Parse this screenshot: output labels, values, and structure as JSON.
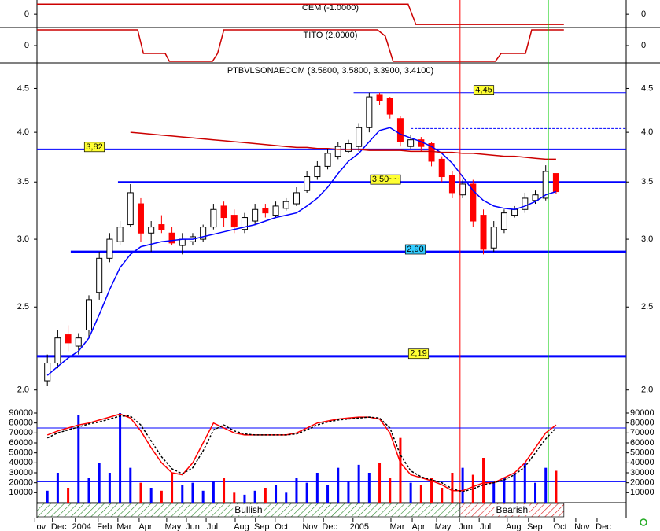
{
  "chart_data": [
    {
      "type": "line",
      "title": "CEM (-1.0000)",
      "x": [
        0,
        71.5,
        73,
        101.5
      ],
      "xlim": [
        0,
        113.5
      ],
      "series": [
        {
          "color": "#cc0000",
          "values": [
            1,
            1,
            -1,
            -1
          ]
        }
      ],
      "ylim": [
        -1.3,
        1.4
      ],
      "yticks": [
        0
      ]
    },
    {
      "type": "line",
      "title": "TITO (2.0000)",
      "x": [
        0,
        19.4,
        20.5,
        24.7,
        25.5,
        33.8,
        34.8,
        36,
        65.6,
        67.1,
        68.6,
        88.3,
        89.4,
        94.1,
        95.3,
        101.5
      ],
      "xlim": [
        0,
        113.5
      ],
      "series": [
        {
          "color": "#cc0000",
          "values": [
            2,
            2,
            -1,
            -1,
            -2,
            -2,
            -1,
            2,
            2,
            1.2,
            -2,
            -2,
            -1,
            -1,
            2,
            2
          ]
        }
      ],
      "ylim": [
        -2.2,
        2.3
      ],
      "yticks": [
        0
      ]
    },
    {
      "type": "candlestick",
      "title": "PTBVLSONAECOM (3.5800, 3.5800, 3.3900, 3.4100)",
      "log_scale": true,
      "x": [
        2,
        4,
        6,
        8,
        10,
        12,
        14,
        16,
        18,
        20,
        22,
        24,
        26,
        28,
        30,
        32,
        34,
        36,
        38,
        40,
        42,
        44,
        46,
        48,
        50,
        52,
        54,
        56,
        58,
        60,
        62,
        64,
        66,
        68,
        70,
        72,
        74,
        76,
        78,
        80,
        82,
        84,
        86,
        88,
        90,
        92,
        94,
        96,
        98,
        100
      ],
      "xlim": [
        0,
        113.5
      ],
      "open": [
        2.05,
        2.15,
        2.32,
        2.25,
        2.35,
        2.6,
        2.85,
        2.98,
        3.12,
        3.3,
        3.05,
        3.12,
        3.05,
        2.95,
        2.98,
        3.0,
        3.1,
        3.28,
        3.2,
        3.08,
        3.15,
        3.26,
        3.2,
        3.26,
        3.3,
        3.42,
        3.55,
        3.65,
        3.75,
        3.8,
        3.85,
        4.05,
        4.42,
        4.38,
        4.15,
        3.85,
        3.92,
        3.88,
        3.72,
        3.56,
        3.38,
        3.48,
        3.2,
        2.93,
        3.08,
        3.2,
        3.25,
        3.33,
        3.35,
        3.58
      ],
      "high": [
        2.2,
        2.35,
        2.38,
        2.33,
        2.58,
        2.9,
        3.05,
        3.15,
        3.48,
        3.35,
        3.15,
        3.2,
        3.1,
        3.05,
        3.05,
        3.12,
        3.3,
        3.32,
        3.25,
        3.22,
        3.3,
        3.3,
        3.32,
        3.35,
        3.45,
        3.6,
        3.7,
        3.82,
        3.9,
        3.92,
        4.1,
        4.45,
        4.45,
        4.4,
        4.18,
        3.97,
        3.95,
        3.9,
        3.75,
        3.6,
        3.52,
        3.52,
        3.25,
        3.15,
        3.25,
        3.28,
        3.4,
        3.42,
        3.66,
        3.58
      ],
      "low": [
        2.02,
        2.12,
        2.22,
        2.2,
        2.3,
        2.55,
        2.82,
        2.95,
        3.1,
        2.98,
        2.9,
        3.05,
        2.95,
        2.88,
        2.95,
        2.98,
        3.08,
        3.1,
        3.05,
        3.05,
        3.12,
        3.18,
        3.18,
        3.24,
        3.28,
        3.4,
        3.52,
        3.62,
        3.72,
        3.78,
        3.8,
        4.0,
        4.3,
        4.15,
        3.85,
        3.82,
        3.8,
        3.65,
        3.5,
        3.35,
        3.35,
        3.1,
        2.88,
        2.9,
        3.05,
        3.18,
        3.22,
        3.3,
        3.33,
        3.39
      ],
      "close": [
        2.15,
        2.3,
        2.27,
        2.3,
        2.55,
        2.85,
        3.0,
        3.1,
        3.4,
        3.05,
        3.1,
        3.08,
        2.97,
        3.0,
        3.02,
        3.1,
        3.25,
        3.18,
        3.1,
        3.18,
        3.25,
        3.22,
        3.28,
        3.32,
        3.4,
        3.55,
        3.65,
        3.78,
        3.85,
        3.88,
        4.05,
        4.4,
        4.35,
        4.2,
        3.9,
        3.92,
        3.85,
        3.7,
        3.55,
        3.4,
        3.48,
        3.15,
        2.92,
        3.1,
        3.22,
        3.25,
        3.35,
        3.38,
        3.6,
        3.41
      ],
      "up_color": "#ffffff",
      "down_color": "#ff0000",
      "series": [
        {
          "color": "#0000ff",
          "values": [
            2.08,
            2.13,
            2.18,
            2.22,
            2.3,
            2.45,
            2.62,
            2.78,
            2.88,
            2.94,
            2.96,
            2.98,
            2.99,
            3.0,
            3.0,
            3.02,
            3.04,
            3.06,
            3.08,
            3.1,
            3.12,
            3.15,
            3.18,
            3.2,
            3.22,
            3.28,
            3.35,
            3.45,
            3.58,
            3.7,
            3.78,
            3.9,
            4.02,
            4.05,
            3.98,
            3.94,
            3.9,
            3.85,
            3.78,
            3.68,
            3.55,
            3.42,
            3.33,
            3.28,
            3.26,
            3.25,
            3.28,
            3.32,
            3.38,
            3.41
          ]
        },
        {
          "color": "#cc0000",
          "values": [
            null,
            null,
            null,
            null,
            null,
            null,
            null,
            null,
            4.0,
            3.99,
            3.98,
            3.97,
            3.96,
            3.95,
            3.94,
            3.93,
            3.92,
            3.91,
            3.9,
            3.89,
            3.88,
            3.87,
            3.86,
            3.85,
            3.84,
            3.84,
            3.83,
            3.83,
            3.82,
            3.82,
            3.82,
            3.81,
            3.81,
            3.81,
            3.81,
            3.8,
            3.8,
            3.8,
            3.79,
            3.79,
            3.78,
            3.78,
            3.77,
            3.76,
            3.75,
            3.75,
            3.74,
            3.73,
            3.72,
            3.72
          ]
        }
      ],
      "hlines": [
        {
          "value": 4.45,
          "label": "4,45",
          "start": 61,
          "color": "#0000ff",
          "line_width": 1,
          "label_color": "#ffff33"
        },
        {
          "value": 3.82,
          "label": "3,82",
          "start": 0,
          "color": "#0000ff",
          "line_width": 2,
          "label_color": "#ffff33"
        },
        {
          "value": 3.5,
          "label": "3,50~~",
          "start": 15.6,
          "color": "#0000ff",
          "line_width": 2,
          "label_color": "#ffff33"
        },
        {
          "value": 2.9,
          "label": "2,90",
          "start": 6.5,
          "color": "#0000ff",
          "line_width": 3,
          "label_color": "#33ccff"
        },
        {
          "value": 2.19,
          "label": "2,19",
          "start": 0,
          "color": "#0000ff",
          "line_width": 3,
          "label_color": "#ffff33"
        },
        {
          "value": 4.04,
          "start": 72,
          "color": "#0000ff",
          "line_width": 1,
          "dash": true
        }
      ],
      "vlines": [
        {
          "x": 81.5,
          "color": "#ff0000"
        },
        {
          "x": 98.5,
          "color": "#00cc00"
        }
      ],
      "ylim": [
        1.92,
        4.82
      ],
      "yticks": [
        {
          "value": 2.0,
          "label": "2.0"
        },
        2.5,
        {
          "value": 3.0,
          "label": "3.0"
        },
        3.5,
        {
          "value": 4.0,
          "label": "4.0"
        },
        4.5
      ]
    },
    {
      "type": "bar",
      "x": [
        2,
        4,
        6,
        8,
        10,
        12,
        14,
        16,
        18,
        20,
        22,
        24,
        26,
        28,
        30,
        32,
        34,
        36,
        38,
        40,
        42,
        44,
        46,
        48,
        50,
        52,
        54,
        56,
        58,
        60,
        62,
        64,
        66,
        68,
        70,
        72,
        74,
        76,
        78,
        80,
        82,
        84,
        86,
        88,
        90,
        92,
        94,
        96,
        98,
        100
      ],
      "xlim": [
        0,
        113.5
      ],
      "values": [
        12000,
        30000,
        15000,
        88000,
        25000,
        40000,
        30000,
        90000,
        35000,
        20000,
        15000,
        12000,
        30000,
        18000,
        20000,
        12000,
        22000,
        25000,
        10000,
        8000,
        12000,
        15000,
        18000,
        10000,
        25000,
        20000,
        30000,
        18000,
        35000,
        22000,
        38000,
        30000,
        40000,
        25000,
        65000,
        20000,
        18000,
        25000,
        15000,
        30000,
        35000,
        28000,
        45000,
        20000,
        25000,
        30000,
        40000,
        20000,
        35000,
        32000
      ],
      "up_color": "#0000ff",
      "down_color": "#ff0000",
      "series": [
        {
          "color": "#ff0000",
          "values": [
            68000,
            72000,
            75000,
            78000,
            80000,
            83000,
            86000,
            89000,
            85000,
            72000,
            55000,
            40000,
            30000,
            28000,
            40000,
            60000,
            80000,
            75000,
            70000,
            68000,
            68000,
            68000,
            68000,
            68000,
            70000,
            75000,
            80000,
            82000,
            84000,
            85000,
            86000,
            86000,
            84000,
            70000,
            40000,
            28000,
            25000,
            22000,
            18000,
            12000,
            12000,
            16000,
            20000,
            20000,
            25000,
            30000,
            40000,
            55000,
            70000,
            78000
          ]
        },
        {
          "color": "#000000",
          "dash": true,
          "values": [
            65000,
            70000,
            73000,
            76000,
            79000,
            81000,
            84000,
            87000,
            87000,
            78000,
            62000,
            46000,
            34000,
            29000,
            35000,
            52000,
            73000,
            78000,
            72000,
            69000,
            68000,
            68000,
            68000,
            68000,
            69000,
            73000,
            78000,
            81000,
            83000,
            84000,
            85000,
            86000,
            85000,
            75000,
            48000,
            32000,
            26000,
            23000,
            20000,
            14000,
            11000,
            14000,
            18000,
            20000,
            23000,
            28000,
            36000,
            50000,
            64000,
            75000
          ]
        }
      ],
      "hlines": [
        {
          "value": 75000,
          "color": "#0000ff",
          "line_width": 1
        },
        {
          "value": 21000,
          "color": "#0000ff",
          "line_width": 1
        }
      ],
      "ylim": [
        0,
        97900
      ],
      "yticks": [
        10000,
        20000,
        30000,
        40000,
        50000,
        60000,
        70000,
        80000,
        90000
      ],
      "xticks": [
        {
          "value": 0.8,
          "label": "ov"
        },
        {
          "value": 4.2,
          "label": "Dec"
        },
        {
          "value": 8.6,
          "label": "2004"
        },
        {
          "value": 13,
          "label": "Feb"
        },
        {
          "value": 16.8,
          "label": "Mar"
        },
        {
          "value": 20.9,
          "label": "Apr"
        },
        {
          "value": 26.2,
          "label": "May"
        },
        {
          "value": 30,
          "label": "Jun"
        },
        {
          "value": 33.8,
          "label": "Jul"
        },
        {
          "value": 39.4,
          "label": "Aug"
        },
        {
          "value": 43.3,
          "label": "Sep"
        },
        {
          "value": 47.1,
          "label": "Oct"
        },
        {
          "value": 52.6,
          "label": "Nov"
        },
        {
          "value": 56.4,
          "label": "Dec"
        },
        {
          "value": 62.1,
          "label": "2005"
        },
        {
          "value": 69.4,
          "label": "Mar"
        },
        {
          "value": 73.5,
          "label": "Apr"
        },
        {
          "value": 78.2,
          "label": "May"
        },
        {
          "value": 82.6,
          "label": "Jun"
        },
        {
          "value": 86.4,
          "label": "Jul"
        },
        {
          "value": 91.8,
          "label": "Aug"
        },
        {
          "value": 95.9,
          "label": "Sep"
        },
        {
          "value": 100.8,
          "label": "Oct"
        },
        {
          "value": 105,
          "label": "Nov"
        },
        {
          "value": 109.1,
          "label": "Dec"
        }
      ],
      "regimes": [
        {
          "label": "Bullish",
          "start": 0,
          "end": 81.5,
          "color": "#2e8b2e"
        },
        {
          "label": "Bearish",
          "start": 81.5,
          "end": 101.5,
          "color": "#dd2222"
        }
      ]
    }
  ]
}
